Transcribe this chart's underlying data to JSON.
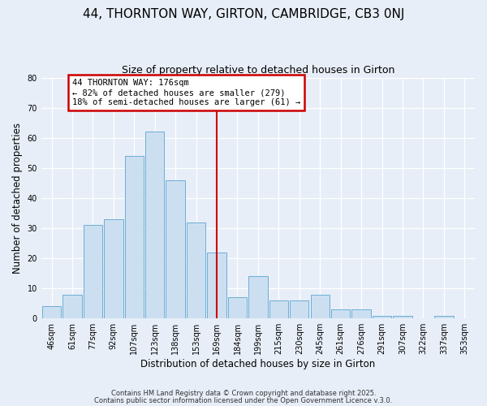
{
  "title": "44, THORNTON WAY, GIRTON, CAMBRIDGE, CB3 0NJ",
  "subtitle": "Size of property relative to detached houses in Girton",
  "xlabel": "Distribution of detached houses by size in Girton",
  "ylabel": "Number of detached properties",
  "bar_labels": [
    "46sqm",
    "61sqm",
    "77sqm",
    "92sqm",
    "107sqm",
    "123sqm",
    "138sqm",
    "153sqm",
    "169sqm",
    "184sqm",
    "199sqm",
    "215sqm",
    "230sqm",
    "245sqm",
    "261sqm",
    "276sqm",
    "291sqm",
    "307sqm",
    "322sqm",
    "337sqm",
    "353sqm"
  ],
  "bar_heights": [
    4,
    8,
    31,
    33,
    54,
    62,
    46,
    32,
    22,
    7,
    14,
    6,
    6,
    8,
    3,
    3,
    1,
    1,
    0,
    1,
    0
  ],
  "bar_color": "#ccdff0",
  "bar_edge_color": "#6baed6",
  "vline_x_index": 8,
  "vline_color": "#cc0000",
  "annotation_title": "44 THORNTON WAY: 176sqm",
  "annotation_line1": "← 82% of detached houses are smaller (279)",
  "annotation_line2": "18% of semi-detached houses are larger (61) →",
  "annotation_box_color": "#cc0000",
  "ylim": [
    0,
    80
  ],
  "yticks": [
    0,
    10,
    20,
    30,
    40,
    50,
    60,
    70,
    80
  ],
  "background_color": "#e8eef8",
  "plot_bg_color": "#e8eef8",
  "footer1": "Contains HM Land Registry data © Crown copyright and database right 2025.",
  "footer2": "Contains public sector information licensed under the Open Government Licence v.3.0.",
  "title_fontsize": 11,
  "subtitle_fontsize": 9,
  "tick_fontsize": 7,
  "ylabel_fontsize": 8.5,
  "xlabel_fontsize": 8.5,
  "footer_fontsize": 6
}
